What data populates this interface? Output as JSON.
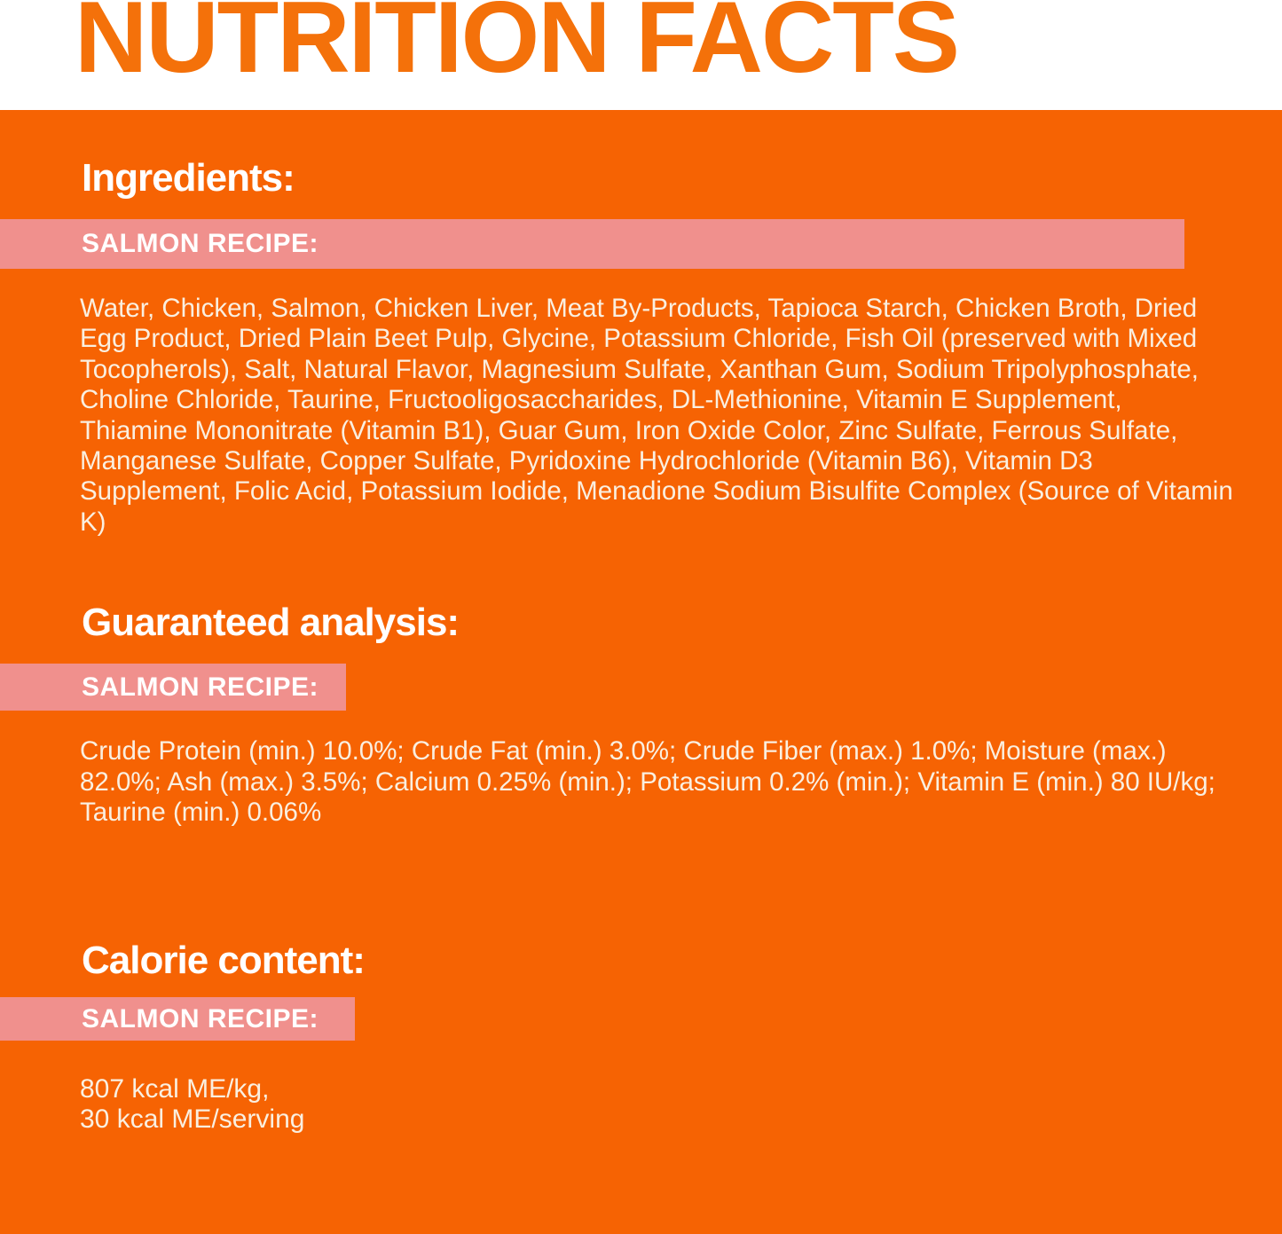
{
  "colors": {
    "background_orange": "#F66303",
    "title_orange": "#F4710A",
    "band_pink": "#F0908D",
    "heading_white": "#FFFFFF",
    "body_cream": "#FAEFE0",
    "top_band_white": "#FFFFFF"
  },
  "header": {
    "title": "NUTRITION FACTS"
  },
  "sections": [
    {
      "heading": "Ingredients:",
      "recipe_label": "SALMON RECIPE:",
      "body": "Water, Chicken, Salmon, Chicken Liver, Meat By-Products, Tapioca Starch, Chicken Broth, Dried Egg Product, Dried Plain Beet Pulp, Glycine, Potassium Chloride, Fish Oil (preserved with Mixed Tocopherols), Salt, Natural Flavor, Magnesium Sulfate, Xanthan Gum, Sodium Tripolyphosphate, Choline Chloride, Taurine, Fructooligosaccharides, DL-Methionine, Vitamin E Supplement, Thiamine Mononitrate (Vitamin B1), Guar Gum, Iron Oxide Color, Zinc Sulfate, Ferrous Sulfate, Manganese Sulfate, Copper Sulfate, Pyridoxine Hydrochloride (Vitamin B6), Vitamin D3 Supplement, Folic Acid, Potassium Iodide, Menadione Sodium Bisulfite Complex (Source of Vitamin K)"
    },
    {
      "heading": "Guaranteed analysis:",
      "recipe_label": "SALMON RECIPE:",
      "body": "Crude Protein (min.) 10.0%; Crude Fat (min.) 3.0%; Crude Fiber (max.) 1.0%; Moisture (max.) 82.0%; Ash (max.) 3.5%; Calcium 0.25% (min.); Potassium 0.2% (min.); Vitamin E (min.) 80 IU/kg; Taurine (min.) 0.06%"
    },
    {
      "heading": "Calorie content:",
      "recipe_label": "SALMON RECIPE:",
      "body_lines": [
        "807 kcal ME/kg,",
        "30 kcal ME/serving"
      ]
    }
  ]
}
